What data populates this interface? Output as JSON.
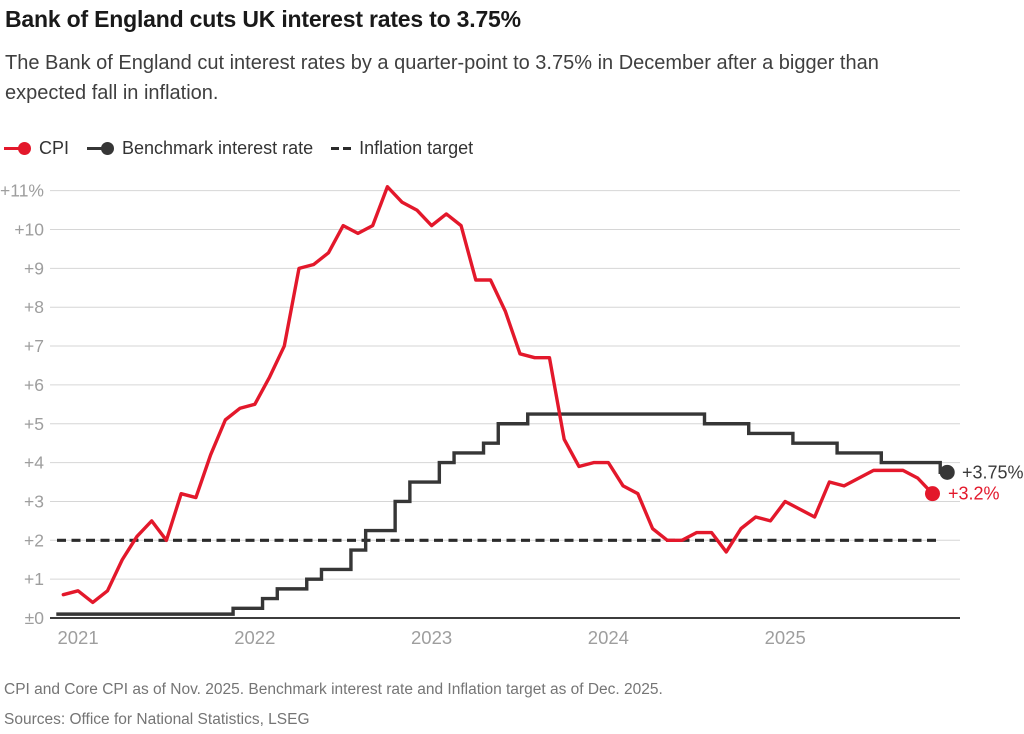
{
  "header": {
    "title": "Bank of England cuts UK interest rates to 3.75%",
    "subtitle": "The Bank of England cut interest rates by a quarter-point to 3.75% in December after a bigger than expected fall in inflation."
  },
  "legend": {
    "items": [
      {
        "label": "CPI",
        "marker": "line-dot",
        "color": "#e3182b"
      },
      {
        "label": "Benchmark interest rate",
        "marker": "line-dot",
        "color": "#363636"
      },
      {
        "label": "Inflation target",
        "marker": "dashes",
        "color": "#2b2b2b"
      }
    ]
  },
  "chart_data": {
    "type": "line",
    "x_start_month": "2020-12",
    "x_tick_labels": [
      "2021",
      "2022",
      "2023",
      "2024",
      "2025"
    ],
    "y_tick_labels": [
      "±0",
      "+1",
      "+2",
      "+3",
      "+4",
      "+5",
      "+6",
      "+7",
      "+8",
      "+9",
      "+10",
      "+11%"
    ],
    "ylim": [
      0,
      11
    ],
    "grid": true,
    "series": [
      {
        "name": "CPI",
        "type": "line",
        "color": "#e3182b",
        "end_label": "+3.2%",
        "values": [
          0.6,
          0.7,
          0.4,
          0.7,
          1.5,
          2.1,
          2.5,
          2.0,
          3.2,
          3.1,
          4.2,
          5.1,
          5.4,
          5.5,
          6.2,
          7.0,
          9.0,
          9.1,
          9.4,
          10.1,
          9.9,
          10.1,
          11.1,
          10.7,
          10.5,
          10.1,
          10.4,
          10.1,
          8.7,
          8.7,
          7.9,
          6.8,
          6.7,
          6.7,
          4.6,
          3.9,
          4.0,
          4.0,
          3.4,
          3.2,
          2.3,
          2.0,
          2.0,
          2.2,
          2.2,
          1.7,
          2.3,
          2.6,
          2.5,
          3.0,
          2.8,
          2.6,
          3.5,
          3.4,
          3.6,
          3.8,
          3.8,
          3.8,
          3.6,
          3.2
        ]
      },
      {
        "name": "Benchmark interest rate",
        "type": "step",
        "color": "#363636",
        "end_label": "+3.75%",
        "end_label_color": "#3a3a3a",
        "changes": [
          [
            0,
            0.1
          ],
          [
            12,
            0.25
          ],
          [
            14,
            0.5
          ],
          [
            15,
            0.75
          ],
          [
            17,
            1.0
          ],
          [
            18,
            1.25
          ],
          [
            20,
            1.75
          ],
          [
            21,
            2.25
          ],
          [
            23,
            3.0
          ],
          [
            24,
            3.5
          ],
          [
            26,
            4.0
          ],
          [
            27,
            4.25
          ],
          [
            29,
            4.5
          ],
          [
            30,
            5.0
          ],
          [
            32,
            5.25
          ],
          [
            44,
            5.0
          ],
          [
            47,
            4.75
          ],
          [
            50,
            4.5
          ],
          [
            53,
            4.25
          ],
          [
            56,
            4.0
          ],
          [
            60,
            3.75
          ]
        ],
        "end_index": 60
      },
      {
        "name": "Inflation target",
        "type": "dashed",
        "color": "#2b2b2b",
        "value": 2
      }
    ]
  },
  "footer": {
    "note": "CPI and Core CPI as of Nov. 2025. Benchmark interest rate and Inflation target as of Dec. 2025.",
    "sources": "Sources: Office for National Statistics, LSEG"
  }
}
